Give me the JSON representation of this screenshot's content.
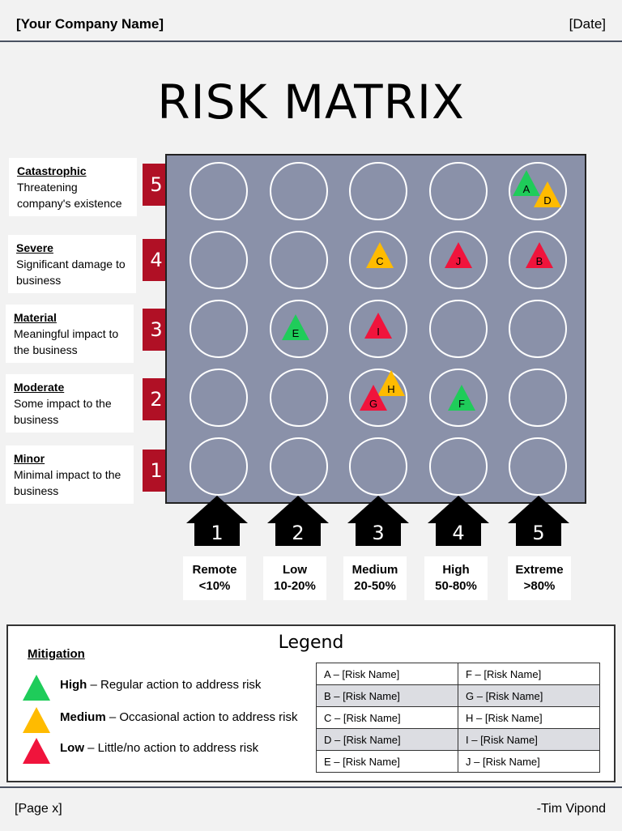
{
  "header": {
    "company": "[Your Company Name]",
    "date": "[Date]"
  },
  "title": "RISK MATRIX",
  "impact_levels": [
    {
      "number": "5",
      "name": "Catastrophic",
      "desc": "Threatening company's existence"
    },
    {
      "number": "4",
      "name": "Severe",
      "desc": "Significant damage to business"
    },
    {
      "number": "3",
      "name": "Material",
      "desc": "Meaningful impact to the business"
    },
    {
      "number": "2",
      "name": "Moderate",
      "desc": "Some impact to the business"
    },
    {
      "number": "1",
      "name": "Minor",
      "desc": "Minimal impact to the business"
    }
  ],
  "likelihood_levels": [
    {
      "number": "1",
      "name": "Remote",
      "range": "<10%"
    },
    {
      "number": "2",
      "name": "Low",
      "range": "10-20%"
    },
    {
      "number": "3",
      "name": "Medium",
      "range": "20-50%"
    },
    {
      "number": "4",
      "name": "High",
      "range": "50-80%"
    },
    {
      "number": "5",
      "name": "Extreme",
      "range": ">80%"
    }
  ],
  "risks": [
    {
      "id": "A",
      "impact": 5,
      "likelihood": 5,
      "mitigation": "High"
    },
    {
      "id": "D",
      "impact": 5,
      "likelihood": 5,
      "mitigation": "Medium"
    },
    {
      "id": "C",
      "impact": 4,
      "likelihood": 3,
      "mitigation": "Medium"
    },
    {
      "id": "J",
      "impact": 4,
      "likelihood": 4,
      "mitigation": "Low"
    },
    {
      "id": "B",
      "impact": 4,
      "likelihood": 5,
      "mitigation": "Low"
    },
    {
      "id": "E",
      "impact": 3,
      "likelihood": 2,
      "mitigation": "High"
    },
    {
      "id": "I",
      "impact": 3,
      "likelihood": 3,
      "mitigation": "Low"
    },
    {
      "id": "H",
      "impact": 2,
      "likelihood": 3,
      "mitigation": "Medium"
    },
    {
      "id": "G",
      "impact": 2,
      "likelihood": 3,
      "mitigation": "Low"
    },
    {
      "id": "F",
      "impact": 2,
      "likelihood": 4,
      "mitigation": "High"
    }
  ],
  "colors": {
    "High": "#1fcc5a",
    "Medium": "#ffbb00",
    "Low": "#f0143c",
    "grid": "#8a91a9",
    "arrow_red": "#b01025",
    "arrow_black": "#000000"
  },
  "legend": {
    "title": "Legend",
    "mitigation_heading": "Mitigation",
    "items": [
      {
        "level": "High",
        "desc": " – Regular action to address risk"
      },
      {
        "level": "Medium",
        "desc": " – Occasional action to address risk"
      },
      {
        "level": "Low",
        "desc": " – Little/no action to address risk"
      }
    ],
    "risk_names": [
      [
        "A – [Risk Name]",
        "F – [Risk Name]"
      ],
      [
        "B – [Risk Name]",
        "G – [Risk Name]"
      ],
      [
        "C – [Risk Name]",
        "H – [Risk Name]"
      ],
      [
        "D – [Risk Name]",
        "I – [Risk Name]"
      ],
      [
        "E – [Risk Name]",
        "J – [Risk Name]"
      ]
    ]
  },
  "footer": {
    "page": "[Page x]",
    "author": "-Tim Vipond"
  }
}
